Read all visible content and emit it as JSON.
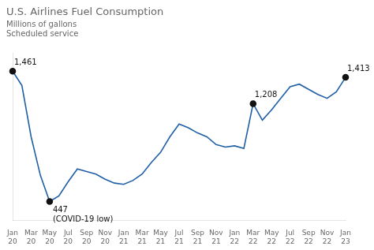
{
  "chart_data": {
    "type": "line",
    "title": "U.S. Airlines Fuel Consumption",
    "subtitle": [
      "Millions of gallons",
      "Scheduled service"
    ],
    "categories": [
      "Jan\n20",
      null,
      "Mar\n20",
      null,
      "May\n20",
      null,
      "Jul\n20",
      null,
      "Sep\n20",
      null,
      "Nov\n20",
      null,
      "Jan\n21",
      null,
      "Mar\n21",
      null,
      "May\n21",
      null,
      "Jul\n21",
      null,
      "Sep\n21",
      null,
      "Nov\n21",
      null,
      "Jan\n22",
      null,
      "Mar\n22",
      null,
      "May\n22",
      null,
      "Jul\n22",
      null,
      "Sep\n22",
      null,
      "Nov\n22",
      null,
      "Jan\n23"
    ],
    "values": [
      1461,
      1350,
      950,
      650,
      447,
      490,
      600,
      700,
      680,
      660,
      620,
      590,
      580,
      610,
      660,
      750,
      830,
      950,
      1050,
      1020,
      980,
      950,
      890,
      870,
      880,
      860,
      1208,
      1080,
      1160,
      1250,
      1340,
      1360,
      1320,
      1280,
      1250,
      1300,
      1413
    ],
    "color": "#1f5fa6",
    "ylim": [
      300,
      1600
    ],
    "tick_labels": "x",
    "grid": false,
    "annotations": [
      {
        "x": "Jan\n20",
        "y": 1461,
        "text": "1,461"
      },
      {
        "x": "May\n20",
        "y": 447,
        "text": "447\n(COVID-19 low)"
      },
      {
        "x": "Mar\n22",
        "y": 1208,
        "text": "1,208"
      },
      {
        "x": "Jan\n23",
        "y": 1413,
        "text": "1,413"
      }
    ]
  }
}
